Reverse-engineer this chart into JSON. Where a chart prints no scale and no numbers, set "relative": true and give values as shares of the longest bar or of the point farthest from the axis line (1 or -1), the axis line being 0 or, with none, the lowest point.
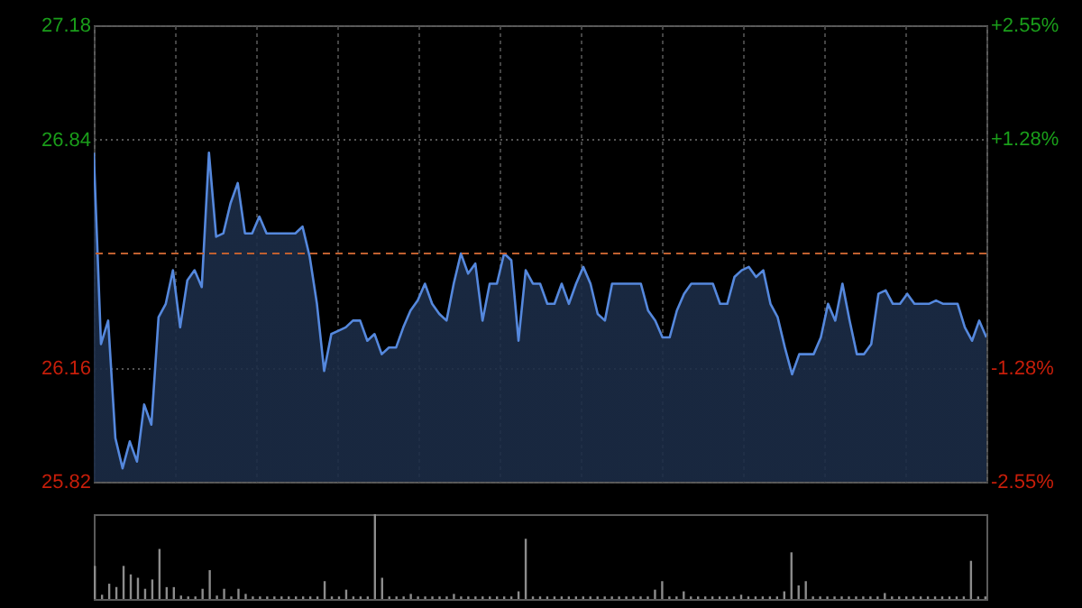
{
  "chart_data": [
    {
      "type": "area",
      "categories": [
        null,
        null,
        null,
        null,
        null,
        null,
        null,
        null,
        null,
        null,
        null,
        null,
        null,
        null,
        null,
        null,
        null,
        null,
        null,
        null,
        null,
        null,
        null,
        null,
        null,
        null,
        null,
        null,
        null,
        null,
        null,
        null,
        null,
        null,
        null,
        null,
        null,
        null,
        null,
        null,
        null,
        null,
        null,
        null,
        null,
        null,
        null,
        null,
        null,
        null,
        null,
        null,
        null,
        null,
        null,
        null,
        null,
        null,
        null,
        null,
        null,
        null,
        null,
        null,
        null,
        null,
        null,
        null,
        null,
        null,
        null,
        null,
        null,
        null,
        null,
        null,
        null,
        null,
        null,
        null,
        null,
        null,
        null,
        null,
        null,
        null,
        null,
        null,
        null,
        null,
        null,
        null,
        null,
        null,
        null,
        null,
        null,
        null,
        null,
        null,
        null,
        null,
        null,
        null,
        null,
        null,
        null,
        null,
        null,
        null,
        null,
        null,
        null,
        null,
        null,
        null,
        null,
        null,
        null,
        null,
        null,
        null,
        null,
        null,
        null
      ],
      "series": [
        {
          "color": "#5588dd",
          "values": [
            26.8,
            26.23,
            26.3,
            25.95,
            25.86,
            25.94,
            25.88,
            26.05,
            25.99,
            26.31,
            26.35,
            26.45,
            26.28,
            26.42,
            26.45,
            26.4,
            26.8,
            26.55,
            26.56,
            26.65,
            26.71,
            26.56,
            26.56,
            26.61,
            26.56,
            26.56,
            26.56,
            26.56,
            26.56,
            26.58,
            26.49,
            26.35,
            26.15,
            26.26,
            26.27,
            26.28,
            26.3,
            26.3,
            26.24,
            26.26,
            26.2,
            26.22,
            26.22,
            26.28,
            26.33,
            26.36,
            26.41,
            26.35,
            26.32,
            26.3,
            26.41,
            26.5,
            26.44,
            26.47,
            26.3,
            26.41,
            26.41,
            26.5,
            26.48,
            26.24,
            26.45,
            26.41,
            26.41,
            26.35,
            26.35,
            26.41,
            26.35,
            26.41,
            26.46,
            26.41,
            26.32,
            26.3,
            26.41,
            26.41,
            26.41,
            26.41,
            26.41,
            26.33,
            26.3,
            26.25,
            26.25,
            26.33,
            26.38,
            26.41,
            26.41,
            26.41,
            26.41,
            26.35,
            26.35,
            26.43,
            26.45,
            26.46,
            26.43,
            26.45,
            26.35,
            26.31,
            26.22,
            26.14,
            26.2,
            26.2,
            26.2,
            26.25,
            26.35,
            26.3,
            26.41,
            26.3,
            26.2,
            26.2,
            26.23,
            26.38,
            26.39,
            26.35,
            26.35,
            26.38,
            26.35,
            26.35,
            26.35,
            26.36,
            26.35,
            26.35,
            26.35,
            26.28,
            26.24,
            26.3,
            26.25
          ]
        }
      ],
      "ylim": [
        25.82,
        27.18
      ],
      "yticks": [
        25.82,
        26.16,
        26.84,
        27.18
      ],
      "y2lim": [
        -2.55,
        2.55
      ],
      "y2ticks": [
        {
          "value": -2.55,
          "label": "-2.55%"
        },
        {
          "value": -1.28,
          "label": "-1.28%"
        },
        {
          "value": 1.28,
          "label": "+1.28%"
        },
        {
          "value": 2.55,
          "label": "+2.55%"
        }
      ],
      "ref_lines": [
        {
          "axis": "y",
          "value": 26.5,
          "color": "#c06030",
          "line_style": "dashed"
        }
      ],
      "grid": true,
      "tick_labels": "y"
    },
    {
      "type": "bar",
      "relative": true,
      "tick_labels": false,
      "categories": [
        null,
        null,
        null,
        null,
        null,
        null,
        null,
        null,
        null,
        null,
        null,
        null,
        null,
        null,
        null,
        null,
        null,
        null,
        null,
        null,
        null,
        null,
        null,
        null,
        null,
        null,
        null,
        null,
        null,
        null,
        null,
        null,
        null,
        null,
        null,
        null,
        null,
        null,
        null,
        null,
        null,
        null,
        null,
        null,
        null,
        null,
        null,
        null,
        null,
        null,
        null,
        null,
        null,
        null,
        null,
        null,
        null,
        null,
        null,
        null,
        null,
        null,
        null,
        null,
        null,
        null,
        null,
        null,
        null,
        null,
        null,
        null,
        null,
        null,
        null,
        null,
        null,
        null,
        null,
        null,
        null,
        null,
        null,
        null,
        null,
        null,
        null,
        null,
        null,
        null,
        null,
        null,
        null,
        null,
        null,
        null,
        null,
        null,
        null,
        null,
        null,
        null,
        null,
        null,
        null,
        null,
        null,
        null,
        null,
        null,
        null,
        null,
        null,
        null,
        null,
        null,
        null,
        null,
        null,
        null,
        null,
        null,
        null,
        null,
        null
      ],
      "series": [
        {
          "color": "#8c8c8c",
          "values": [
            0.39,
            0.05,
            0.18,
            0.14,
            0.39,
            0.29,
            0.25,
            0.12,
            0.23,
            0.59,
            0.14,
            0.14,
            0.04,
            0.03,
            0.03,
            0.12,
            0.34,
            0.04,
            0.12,
            0.03,
            0.12,
            0.06,
            0.03,
            0.03,
            0.03,
            0.03,
            0.03,
            0.03,
            0.03,
            0.03,
            0.03,
            0.03,
            0.21,
            0.03,
            0.03,
            0.11,
            0.03,
            0.03,
            0.03,
            1,
            0.25,
            0.03,
            0.03,
            0.03,
            0.06,
            0.03,
            0.03,
            0.03,
            0.03,
            0.03,
            0.06,
            0.03,
            0.03,
            0.03,
            0.03,
            0.03,
            0.03,
            0.03,
            0.03,
            0.09,
            0.71,
            0.03,
            0.03,
            0.03,
            0.03,
            0.03,
            0.03,
            0.03,
            0.03,
            0.03,
            0.03,
            0.03,
            0.03,
            0.03,
            0.03,
            0.03,
            0.03,
            0.03,
            0.11,
            0.21,
            0.03,
            0.03,
            0.09,
            0.03,
            0.03,
            0.03,
            0.03,
            0.03,
            0.03,
            0.03,
            0.05,
            0.03,
            0.03,
            0.03,
            0.03,
            0.03,
            0.09,
            0.55,
            0.16,
            0.21,
            0.03,
            0.03,
            0.03,
            0.03,
            0.03,
            0.03,
            0.03,
            0.03,
            0.03,
            0.03,
            0.07,
            0.03,
            0.03,
            0.03,
            0.03,
            0.03,
            0.03,
            0.03,
            0.03,
            0.03,
            0.03,
            0.03,
            0.45,
            0.03,
            0.03
          ]
        }
      ]
    }
  ]
}
